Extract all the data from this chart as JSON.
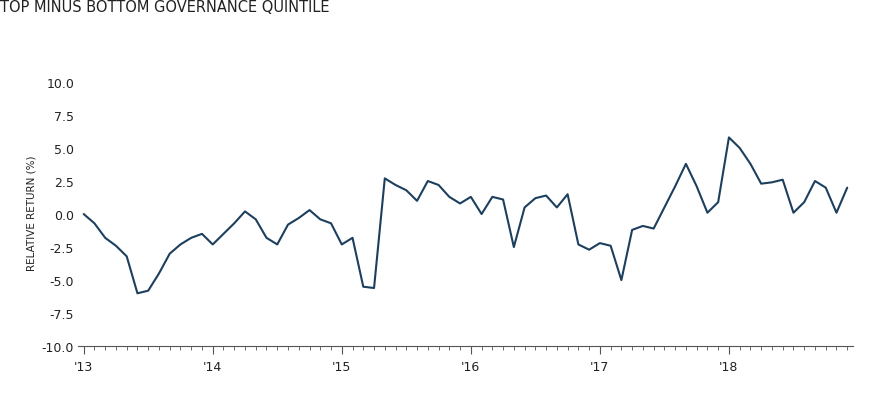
{
  "title": "TOP MINUS BOTTOM GOVERNANCE QUINTILE",
  "ylabel": "RELATIVE RETURN (%)",
  "line_color": "#1d3f5e",
  "bg_color": "#ffffff",
  "text_color": "#222222",
  "spine_color": "#555555",
  "ylim": [
    -10.5,
    10.8
  ],
  "yticks": [
    -10.0,
    -7.5,
    -5.0,
    -2.5,
    0.0,
    2.5,
    5.0,
    7.5,
    10.0
  ],
  "xtick_labels": [
    "'13",
    "'14",
    "'15",
    "'16",
    "'17",
    "'18"
  ],
  "year_positions": [
    0,
    12,
    24,
    36,
    48,
    60
  ],
  "title_fontsize": 10.5,
  "ylabel_fontsize": 7.5,
  "tick_fontsize": 9,
  "line_width": 1.5,
  "values": [
    0.0,
    -0.7,
    -1.8,
    -2.4,
    -3.2,
    -6.0,
    -5.8,
    -4.5,
    -3.0,
    -2.3,
    -1.8,
    -1.5,
    -2.3,
    -1.5,
    -0.7,
    0.2,
    -0.4,
    -1.8,
    -2.3,
    -0.8,
    -0.3,
    0.3,
    -0.4,
    -0.7,
    -2.3,
    -1.8,
    -5.5,
    -5.6,
    2.7,
    2.2,
    1.8,
    1.0,
    2.5,
    2.2,
    1.3,
    0.8,
    1.3,
    0.0,
    1.3,
    1.1,
    -2.5,
    0.5,
    1.2,
    1.4,
    0.5,
    1.5,
    -2.3,
    -2.7,
    -2.2,
    -2.4,
    -5.0,
    -1.2,
    -0.9,
    -1.1,
    0.5,
    2.1,
    3.8,
    2.1,
    0.1,
    0.9,
    5.8,
    5.0,
    3.8,
    2.3,
    2.4,
    2.6,
    0.1,
    0.9,
    2.5,
    2.0,
    0.1,
    2.0
  ]
}
